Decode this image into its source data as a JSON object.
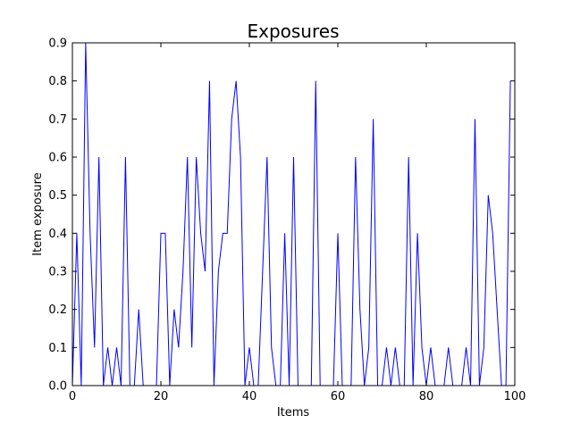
{
  "chart_data": {
    "type": "line",
    "title": "Exposures",
    "xlabel": "Items",
    "ylabel": "Item exposure",
    "xlim": [
      0,
      100
    ],
    "ylim": [
      0,
      0.9
    ],
    "xticks": [
      0,
      20,
      40,
      60,
      80,
      100
    ],
    "xtick_labels": [
      "0",
      "20",
      "40",
      "60",
      "80",
      "100"
    ],
    "yticks": [
      0.0,
      0.1,
      0.2,
      0.3,
      0.4,
      0.5,
      0.6,
      0.7,
      0.8,
      0.9
    ],
    "ytick_labels": [
      "0.0",
      "0.1",
      "0.2",
      "0.3",
      "0.4",
      "0.5",
      "0.6",
      "0.7",
      "0.8",
      "0.9"
    ],
    "grid": false,
    "legend": "none",
    "series": [
      {
        "color": "#0000ff",
        "x": [
          0,
          1,
          2,
          3,
          4,
          5,
          6,
          7,
          8,
          9,
          10,
          11,
          12,
          13,
          14,
          15,
          16,
          17,
          18,
          19,
          20,
          21,
          22,
          23,
          24,
          25,
          26,
          27,
          28,
          29,
          30,
          31,
          32,
          33,
          34,
          35,
          36,
          37,
          38,
          39,
          40,
          41,
          42,
          43,
          44,
          45,
          46,
          47,
          48,
          49,
          50,
          51,
          52,
          53,
          54,
          55,
          56,
          57,
          58,
          59,
          60,
          61,
          62,
          63,
          64,
          65,
          66,
          67,
          68,
          69,
          70,
          71,
          72,
          73,
          74,
          75,
          76,
          77,
          78,
          79,
          80,
          81,
          82,
          83,
          84,
          85,
          86,
          87,
          88,
          89,
          90,
          91,
          92,
          93,
          94,
          95,
          96,
          97,
          98,
          99
        ],
        "values": [
          0.0,
          0.4,
          0.0,
          0.9,
          0.4,
          0.1,
          0.6,
          0.0,
          0.1,
          0.0,
          0.1,
          0.0,
          0.6,
          0.0,
          0.0,
          0.2,
          0.0,
          0.0,
          0.0,
          0.0,
          0.4,
          0.4,
          0.0,
          0.2,
          0.1,
          0.3,
          0.6,
          0.1,
          0.6,
          0.4,
          0.3,
          0.8,
          0.0,
          0.3,
          0.4,
          0.4,
          0.7,
          0.8,
          0.6,
          0.0,
          0.1,
          0.0,
          0.0,
          0.3,
          0.6,
          0.1,
          0.0,
          0.0,
          0.4,
          0.0,
          0.6,
          0.0,
          0.0,
          0.0,
          0.0,
          0.8,
          0.0,
          0.0,
          0.0,
          0.0,
          0.4,
          0.0,
          0.0,
          0.0,
          0.6,
          0.2,
          0.0,
          0.1,
          0.7,
          0.0,
          0.0,
          0.1,
          0.0,
          0.1,
          0.0,
          0.0,
          0.6,
          0.0,
          0.4,
          0.1,
          0.0,
          0.1,
          0.0,
          0.0,
          0.0,
          0.1,
          0.0,
          0.0,
          0.0,
          0.1,
          0.0,
          0.7,
          0.0,
          0.1,
          0.5,
          0.4,
          0.2,
          0.0,
          0.0,
          0.8
        ]
      }
    ]
  }
}
